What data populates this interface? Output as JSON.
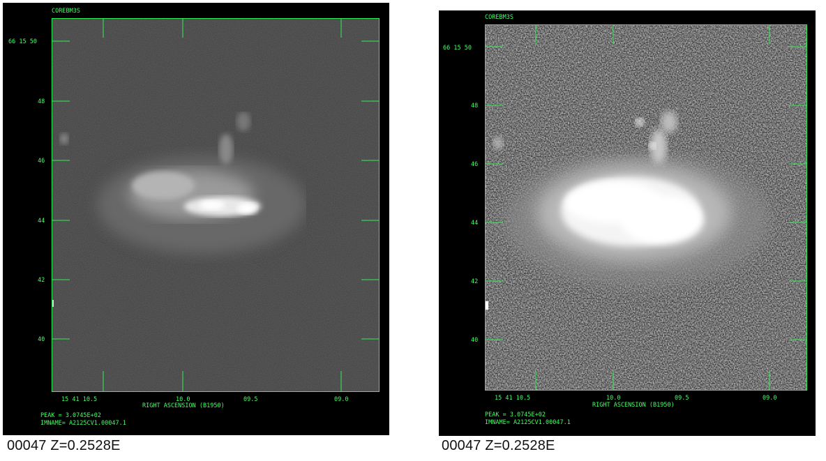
{
  "colors": {
    "panel_bg": "#000000",
    "frame_green": "#33ee55",
    "caption_text": "#111111"
  },
  "panels": [
    {
      "id": "left",
      "title": "COREBM3S",
      "dec_label": "66 15 50",
      "dec_ticks": [
        "48",
        "46",
        "44",
        "42",
        "40"
      ],
      "ra_ticks": [
        "15 41 10.5",
        "10.0",
        "09.5",
        "09.0"
      ],
      "axis_label": "RIGHT ASCENSION (B1950)",
      "peak": "PEAK =  3.0745E+02",
      "imname": "IMNAME= A2125CV1.00047.1",
      "caption": "00047 Z=0.2528E",
      "image_name": "galaxy-grayscale-linear-stretch"
    },
    {
      "id": "right",
      "title": "COREBM3S",
      "dec_label": "66 15 50",
      "dec_ticks": [
        "48",
        "46",
        "44",
        "42",
        "40"
      ],
      "ra_ticks": [
        "15 41 10.5",
        "10.0",
        "09.5",
        "09.0"
      ],
      "axis_label": "RIGHT ASCENSION (B1950)",
      "peak": "PEAK =  3.0745E+02",
      "imname": "IMNAME= A2125CV1.00047.1",
      "caption": "00047 Z=0.2528E",
      "image_name": "galaxy-grayscale-high-contrast-stretch"
    }
  ]
}
